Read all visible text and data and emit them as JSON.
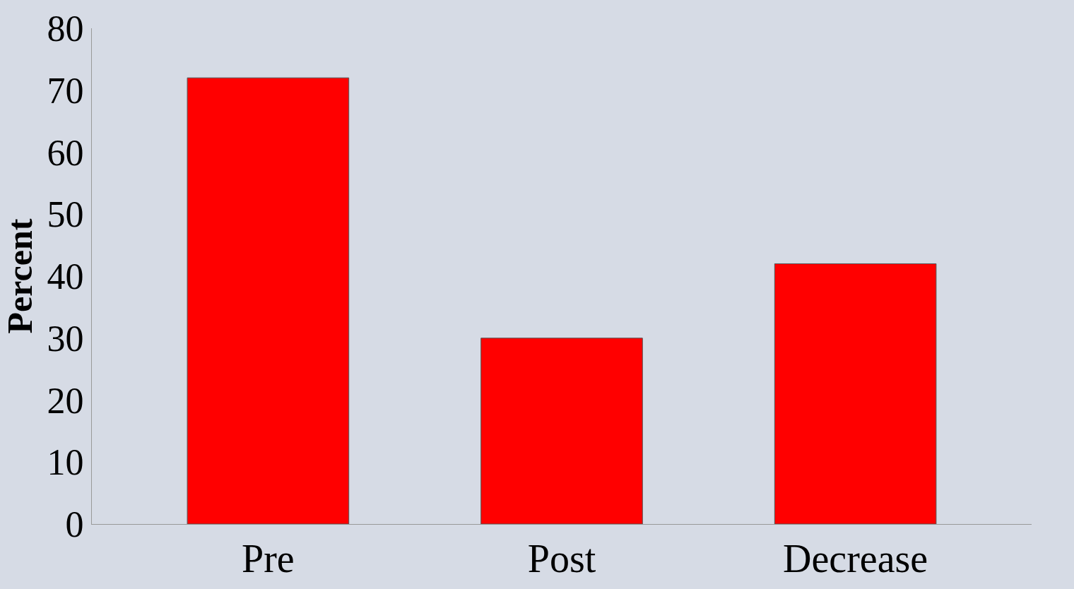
{
  "chart_data": {
    "type": "bar",
    "ylabel": "Percent",
    "categories": [
      "Pre",
      "Post",
      "Decrease"
    ],
    "values": [
      72,
      30,
      42
    ],
    "color": "#ff0000",
    "ylim": [
      0,
      80
    ],
    "yticks": [
      0,
      10,
      20,
      30,
      40,
      50,
      60,
      70,
      80
    ],
    "grid": false
  }
}
